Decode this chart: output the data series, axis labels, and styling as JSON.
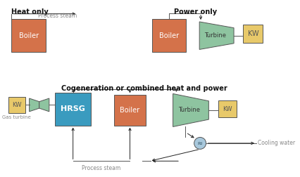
{
  "bg_color": "#ffffff",
  "boiler_color": "#d4724a",
  "turbine_color": "#8ec4a0",
  "kw_color": "#e8c96a",
  "hrsg_color": "#3a9bbf",
  "line_color": "#555555",
  "title_top_left": "Heat only",
  "title_top_right": "Power only",
  "title_bottom": "Cogeneration or combined heat and power",
  "label_boiler": "Boiler",
  "label_hrsg": "HRSG",
  "label_turbine": "Turbine",
  "label_kw": "KW",
  "label_gas_turbine": "Gas turbine",
  "label_process_steam": "Process steam",
  "label_cooling_water": "Cooling water",
  "arrow_color": "#222222",
  "label_color": "#888888",
  "title_color": "#111111"
}
